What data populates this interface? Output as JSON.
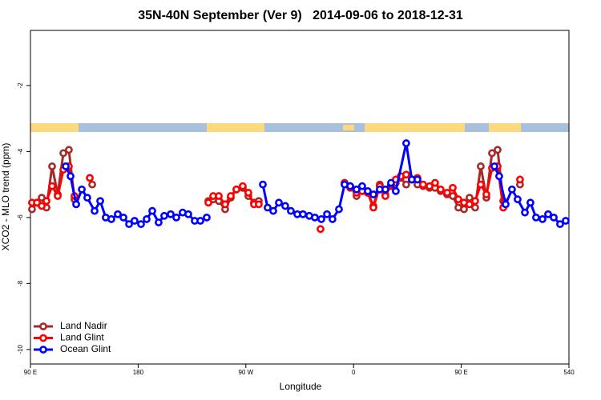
{
  "chart_data": {
    "type": "line",
    "title": "35N-40N September (Ver 9)   2014-09-06 to 2018-12-31",
    "x_label": "Longitude",
    "y_label": "XCO2 - MLO trend (ppm)",
    "xlim": [
      90,
      540
    ],
    "ylim": [
      -10.44,
      -0.33
    ],
    "xticks": [
      {
        "value": 90,
        "label": "90 E"
      },
      180,
      {
        "value": 270,
        "label": "90 W"
      },
      {
        "value": 360,
        "label": "0"
      },
      {
        "value": 450,
        "label": "90 E"
      },
      540
    ],
    "yticks": [
      -2,
      -4,
      -6,
      -8,
      -10
    ],
    "legend": "bottom-left",
    "series": [
      {
        "name": "Land Nadir",
        "color": "#a52a2a",
        "x": [
          91.3,
          95.4,
          99.4,
          103.4,
          108.1,
          112.8,
          117.5,
          122.1,
          126.8,
          131.5,
          141.6,
          198.5,
          238.7,
          242.7,
          247.4,
          252.7,
          257.4,
          262.1,
          267.4,
          272.1,
          276.8,
          280.8,
          342.4,
          352.5,
          357.2,
          362.5,
          367.2,
          371.9,
          376.6,
          381.9,
          386.6,
          391.3,
          395.3,
          399.4,
          404.0,
          408.7,
          413.4,
          418.1,
          423.5,
          428.1,
          432.8,
          438.2,
          442.9,
          447.6,
          452.3,
          456.9,
          461.6,
          466.3,
          471.0,
          475.7,
          480.4,
          485.1,
          493.1,
          499.1
        ],
        "values": [
          -5.75,
          -5.55,
          -5.4,
          -5.7,
          -4.45,
          -5.3,
          -4.05,
          -3.95,
          -5.45,
          null,
          -5.0,
          null,
          -5.5,
          -5.45,
          -5.5,
          -5.75,
          -5.4,
          -5.15,
          -5.1,
          -5.35,
          -5.55,
          -5.5,
          null,
          -4.95,
          -5.05,
          -5.35,
          -5.2,
          -5.25,
          -5.65,
          -5.0,
          -5.3,
          -5.05,
          -4.95,
          -4.8,
          -5.0,
          -4.85,
          -5.0,
          -5.05,
          -5.1,
          -5.1,
          -5.2,
          -5.3,
          -5.35,
          -5.7,
          -5.75,
          -5.4,
          -5.7,
          -4.45,
          -5.4,
          -4.05,
          -3.95,
          -5.5,
          null,
          -5.0
        ]
      },
      {
        "name": "Land Glint",
        "color": "#ff0000",
        "x": [
          91.3,
          95.4,
          99.4,
          103.4,
          108.1,
          112.8,
          117.5,
          122.1,
          126.8,
          131.5,
          139.6,
          198.5,
          238.7,
          242.7,
          247.4,
          252.7,
          257.4,
          262.1,
          267.4,
          272.1,
          276.8,
          280.8,
          305.6,
          332.4,
          342.4,
          352.5,
          357.2,
          362.5,
          367.2,
          371.9,
          376.6,
          381.9,
          386.6,
          391.3,
          395.3,
          399.4,
          404.0,
          408.7,
          413.4,
          418.1,
          423.5,
          428.1,
          432.8,
          438.2,
          442.9,
          447.6,
          452.3,
          456.9,
          461.6,
          466.3,
          471.0,
          475.7,
          480.4,
          485.1,
          493.1,
          499.1
        ],
        "values": [
          -5.55,
          -5.55,
          -5.65,
          -5.5,
          -5.05,
          -5.35,
          -4.55,
          -4.45,
          -5.35,
          null,
          -4.8,
          null,
          -5.55,
          -5.35,
          -5.35,
          -5.6,
          -5.35,
          -5.15,
          -5.05,
          -5.25,
          -5.6,
          -5.6,
          null,
          -6.35,
          null,
          -4.95,
          -5.1,
          -5.25,
          -5.2,
          -5.25,
          -5.7,
          -5.05,
          -5.35,
          -5.0,
          -4.85,
          -4.75,
          -4.7,
          -4.85,
          -4.8,
          -5.0,
          -5.05,
          -4.95,
          -5.15,
          -5.25,
          -5.1,
          -5.45,
          -5.55,
          -5.6,
          -5.5,
          -5.0,
          -5.3,
          -4.5,
          -4.45,
          -5.7,
          null,
          -4.85
        ]
      },
      {
        "name": "Ocean Glint",
        "color": "#0000ff",
        "x": [
          119.5,
          123.5,
          128.2,
          132.9,
          137.5,
          143.6,
          148.3,
          152.9,
          157.6,
          163.0,
          167.7,
          172.4,
          177.0,
          182.4,
          187.1,
          191.8,
          197.1,
          201.8,
          207.2,
          211.9,
          217.2,
          221.9,
          227.3,
          232.0,
          237.3,
          260.7,
          284.2,
          288.2,
          292.9,
          297.6,
          302.9,
          307.6,
          313.0,
          317.7,
          323.0,
          327.7,
          333.1,
          337.8,
          342.4,
          347.8,
          352.5,
          357.2,
          362.5,
          367.2,
          371.9,
          376.6,
          381.9,
          386.6,
          391.3,
          395.3,
          404.0,
          408.7,
          413.4,
          445.0,
          477.7,
          481.7,
          487.1,
          492.4,
          497.1,
          503.2,
          507.8,
          512.5,
          517.9,
          522.6,
          527.3,
          532.6,
          537.3
        ],
        "values": [
          -4.45,
          -4.75,
          -5.6,
          -5.15,
          -5.4,
          -5.8,
          -5.5,
          -6.0,
          -6.05,
          -5.9,
          -6.0,
          -6.2,
          -6.1,
          -6.2,
          -6.05,
          -5.8,
          -6.15,
          -5.95,
          -5.9,
          -6.0,
          -5.85,
          -5.9,
          -6.1,
          -6.1,
          -6.0,
          null,
          -5.0,
          -5.7,
          -5.8,
          -5.55,
          -5.65,
          -5.8,
          -5.9,
          -5.9,
          -5.95,
          -6.0,
          -6.05,
          -5.9,
          -6.05,
          -5.75,
          -5.0,
          -5.05,
          -5.15,
          -5.05,
          -5.2,
          -5.3,
          -5.15,
          -5.15,
          -4.95,
          -5.2,
          -3.75,
          -4.85,
          -4.85,
          null,
          -4.45,
          -4.75,
          -5.6,
          -5.15,
          -5.45,
          -5.85,
          -5.55,
          -6.0,
          -6.05,
          -5.9,
          -6.0,
          -6.2,
          -6.1
        ]
      }
    ]
  }
}
